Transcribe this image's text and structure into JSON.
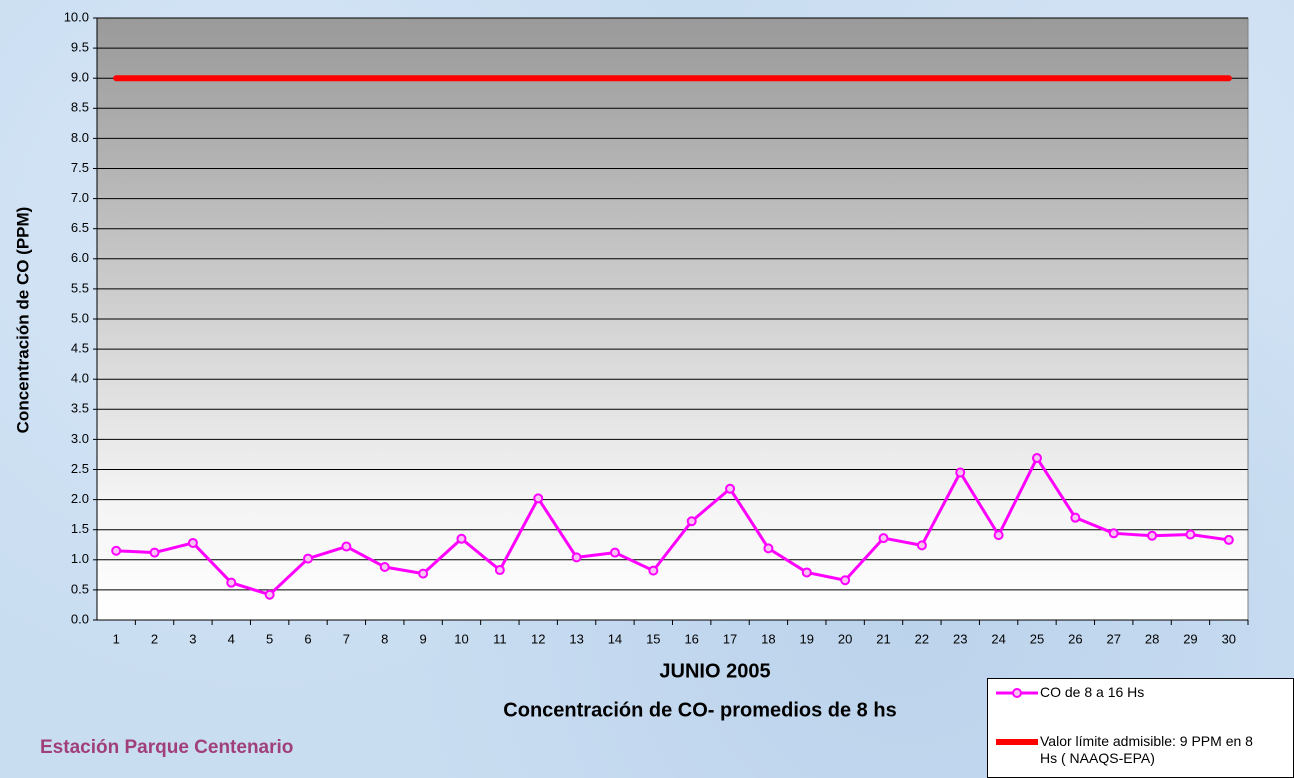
{
  "chart_data": {
    "type": "line",
    "xlabel": "JUNIO 2005",
    "caption": "Concentración de CO- promedios de 8 hs",
    "station": "Estación Parque Centenario",
    "ylabel": "Concentración de CO (PPM)",
    "categories": [
      "1",
      "2",
      "3",
      "4",
      "5",
      "6",
      "7",
      "8",
      "9",
      "10",
      "11",
      "12",
      "13",
      "14",
      "15",
      "16",
      "17",
      "18",
      "19",
      "20",
      "21",
      "22",
      "23",
      "24",
      "25",
      "26",
      "27",
      "28",
      "29",
      "30"
    ],
    "series": [
      {
        "name": "CO de 8 a 16 Hs",
        "color": "#ff00ff",
        "values": [
          1.15,
          1.12,
          1.28,
          0.62,
          0.42,
          1.02,
          1.22,
          0.88,
          0.77,
          1.35,
          0.83,
          2.02,
          1.04,
          1.12,
          0.82,
          1.64,
          2.18,
          1.19,
          0.79,
          0.66,
          1.36,
          1.24,
          2.45,
          1.41,
          2.69,
          1.7,
          1.44,
          1.4,
          1.42,
          1.33
        ]
      },
      {
        "name": "Valor límite admisible: 9 PPM en 8 Hs ( NAAQS-EPA)",
        "color": "#ff0000",
        "values": [
          9,
          9,
          9,
          9,
          9,
          9,
          9,
          9,
          9,
          9,
          9,
          9,
          9,
          9,
          9,
          9,
          9,
          9,
          9,
          9,
          9,
          9,
          9,
          9,
          9,
          9,
          9,
          9,
          9,
          9
        ]
      }
    ],
    "ylim": [
      0,
      10
    ],
    "yticks": [
      {
        "value": 0,
        "label": "0.0"
      },
      0.5,
      {
        "value": 1,
        "label": "1.0"
      },
      1.5,
      {
        "value": 2,
        "label": "2.0"
      },
      2.5,
      {
        "value": 3,
        "label": "3.0"
      },
      3.5,
      {
        "value": 4,
        "label": "4.0"
      },
      4.5,
      {
        "value": 5,
        "label": "5.0"
      },
      5.5,
      {
        "value": 6,
        "label": "6.0"
      },
      6.5,
      {
        "value": 7,
        "label": "7.0"
      },
      7.5,
      {
        "value": 8,
        "label": "8.0"
      },
      8.5,
      {
        "value": 9,
        "label": "9.0"
      },
      9.5,
      {
        "value": 10,
        "label": "10.0"
      }
    ],
    "grid": true
  }
}
